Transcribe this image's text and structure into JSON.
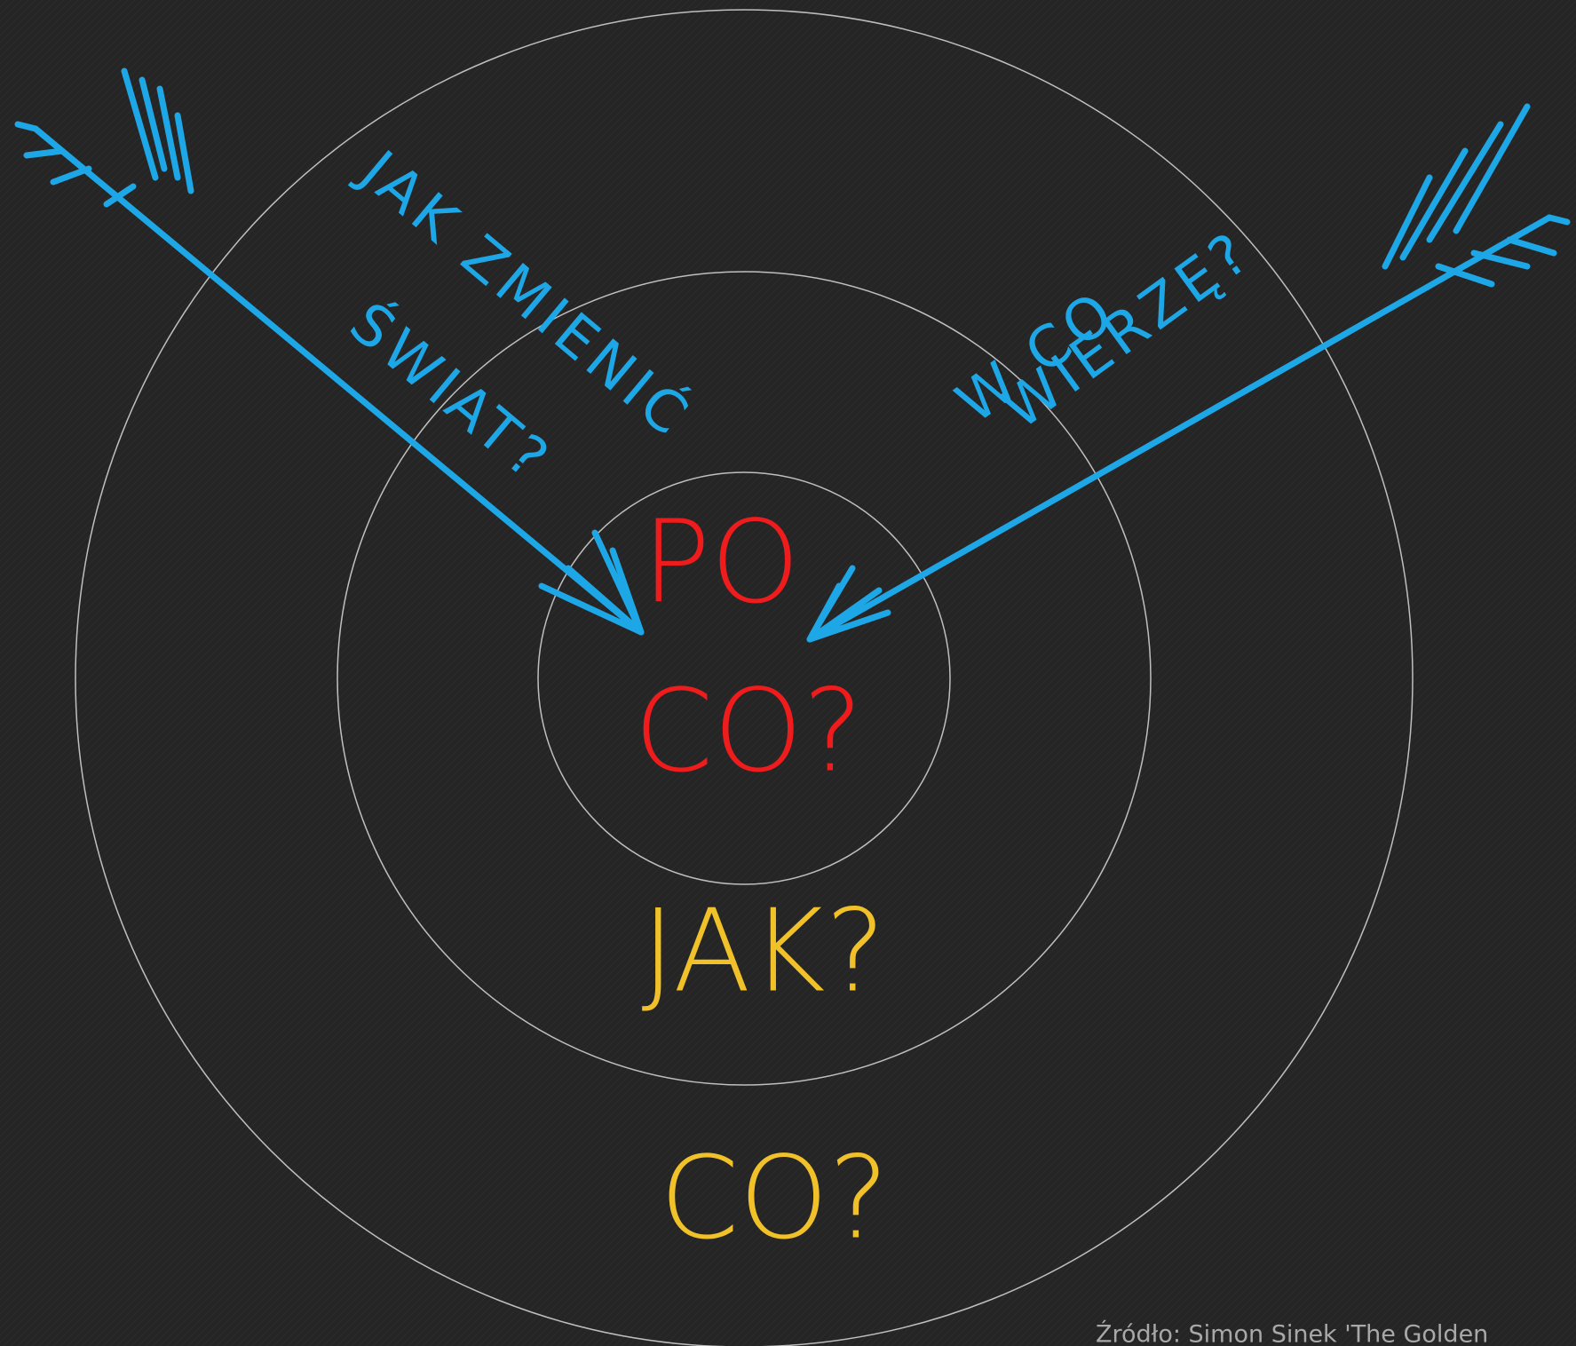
{
  "center": {
    "line1": "PO",
    "line2": "CO?"
  },
  "middle": {
    "label": "JAK?"
  },
  "outer": {
    "label": "CO?"
  },
  "arrows": {
    "left": {
      "line1": "JAK ZMIENIĆ",
      "line2": "ŚWIAT?"
    },
    "right": {
      "line1": "W CO",
      "line2": "WIERZĘ?"
    }
  },
  "source": "Źródło: Simon Sinek 'The Golden"
}
